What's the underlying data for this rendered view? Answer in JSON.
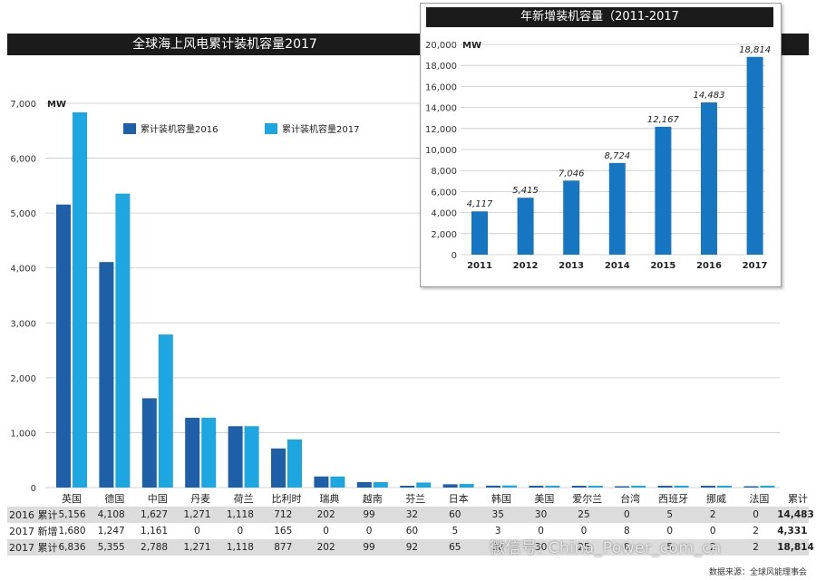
{
  "main": {
    "title": "全球海上风电累计装机容量2017",
    "unit": "MW"
  },
  "inset": {
    "title": "年新增装机容量（2011-2017",
    "unit": "MW"
  },
  "table": {
    "total_header": "累计",
    "rows": [
      {
        "label": "2016 累计",
        "values": [
          "5,156",
          "4,108",
          "1,627",
          "1,271",
          "1,118",
          "712",
          "202",
          "99",
          "32",
          "60",
          "35",
          "30",
          "25",
          "0",
          "5",
          "2",
          "0"
        ],
        "total": "14,483"
      },
      {
        "label": "2017 新增",
        "values": [
          "1,680",
          "1,247",
          "1,161",
          "0",
          "0",
          "165",
          "0",
          "0",
          "60",
          "5",
          "3",
          "0",
          "0",
          "8",
          "0",
          "0",
          "2"
        ],
        "total": "4,331"
      },
      {
        "label": "2017 累计",
        "values": [
          "6,836",
          "5,355",
          "2,788",
          "1,271",
          "1,118",
          "877",
          "202",
          "99",
          "92",
          "65",
          "38",
          "30",
          "25",
          "8",
          "5",
          "2",
          "2"
        ],
        "total": "18,814"
      }
    ]
  },
  "source": "数据来源：全球风能理事会",
  "watermark": "微信号: China_Power_com_cn",
  "colors": {
    "series_2016": "#1f5fa8",
    "series_2017": "#1ea6e0",
    "inset_bar": "#1676c2",
    "title_bar": "#1b1b1b",
    "grid": "#c8c8c8"
  },
  "chart_data": [
    {
      "type": "bar",
      "title": "全球海上风电累计装机容量2017",
      "ylabel": "MW",
      "ylim": [
        0,
        7000
      ],
      "yticks": [
        0,
        1000,
        2000,
        3000,
        4000,
        5000,
        6000,
        7000
      ],
      "ytick_labels": [
        "0",
        "1,000",
        "2,000",
        "3,000",
        "4,000",
        "5,000",
        "6,000",
        "7,000"
      ],
      "categories": [
        "英国",
        "德国",
        "中国",
        "丹麦",
        "荷兰",
        "比利时",
        "瑞典",
        "越南",
        "芬兰",
        "日本",
        "韩国",
        "美国",
        "爱尔兰",
        "台湾",
        "西班牙",
        "挪威",
        "法国"
      ],
      "series": [
        {
          "name": "累计装机容量2016",
          "values": [
            5156,
            4108,
            1627,
            1271,
            1118,
            712,
            202,
            99,
            32,
            60,
            35,
            30,
            25,
            0,
            5,
            2,
            0
          ]
        },
        {
          "name": "累计装机容量2017",
          "values": [
            6836,
            5355,
            2788,
            1271,
            1118,
            877,
            202,
            99,
            92,
            65,
            38,
            30,
            25,
            8,
            5,
            2,
            2
          ]
        }
      ],
      "grid": true,
      "legend": "top-center"
    },
    {
      "type": "bar",
      "title": "年新增装机容量（2011-2017",
      "ylabel": "MW",
      "ylim": [
        0,
        20000
      ],
      "yticks": [
        0,
        2000,
        4000,
        6000,
        8000,
        10000,
        12000,
        14000,
        16000,
        18000,
        20000
      ],
      "ytick_labels": [
        "0",
        "2,000",
        "4,000",
        "6,000",
        "8,000",
        "10,000",
        "12,000",
        "14,000",
        "16,000",
        "18,000",
        "20,000"
      ],
      "categories": [
        "2011",
        "2012",
        "2013",
        "2014",
        "2015",
        "2016",
        "2017"
      ],
      "values": [
        4117,
        5415,
        7046,
        8724,
        12167,
        14483,
        18814
      ],
      "value_labels": [
        "4,117",
        "5,415",
        "7,046",
        "8,724",
        "12,167",
        "14,483",
        "18,814"
      ],
      "grid": true
    }
  ]
}
